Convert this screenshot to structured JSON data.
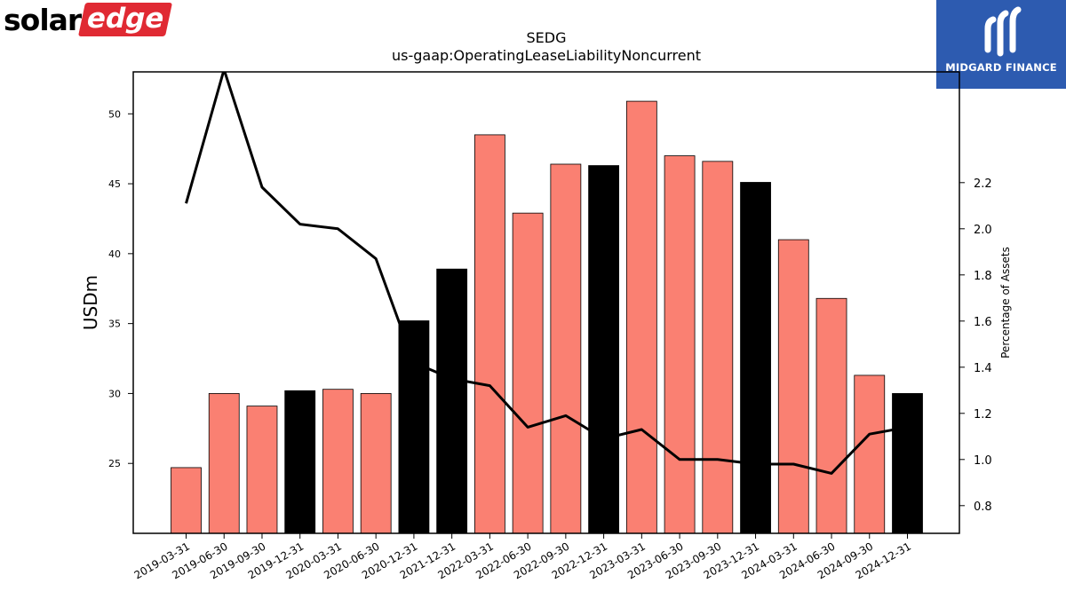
{
  "brand": {
    "logo_solar": "solar",
    "logo_edge": "edge",
    "badge_text": "MIDGARD FINANCE",
    "logo_color": "#e02a33",
    "badge_color": "#2d5bb0"
  },
  "chart_data": {
    "type": "bar",
    "title": "SEDG",
    "subtitle": "us-gaap:OperatingLeaseLiabilityNoncurrent",
    "ylabel": "USDm",
    "y2label": "Percentage of Assets",
    "ylim": [
      20,
      53
    ],
    "y2lim": [
      0.68,
      2.68
    ],
    "yticks": [
      25,
      30,
      35,
      40,
      45,
      50
    ],
    "y2ticks": [
      0.8,
      1.0,
      1.2,
      1.4,
      1.6,
      1.8,
      2.0,
      2.2
    ],
    "y2tick_labels": [
      "0.8",
      "1.0",
      "1.2",
      "1.4",
      "1.6",
      "1.8",
      "2.0",
      "2.2"
    ],
    "categories": [
      "2019-03-31",
      "2019-06-30",
      "2019-09-30",
      "2019-12-31",
      "2020-03-31",
      "2020-06-30",
      "2020-12-31",
      "2021-12-31",
      "2022-03-31",
      "2022-06-30",
      "2022-09-30",
      "2022-12-31",
      "2023-03-31",
      "2023-06-30",
      "2023-09-30",
      "2023-12-31",
      "2024-03-31",
      "2024-06-30",
      "2024-09-30",
      "2024-12-31"
    ],
    "series": [
      {
        "values": [
          24.7,
          30.0,
          29.1,
          30.2,
          30.3,
          30.0,
          35.2,
          38.9,
          48.5,
          42.9,
          46.4,
          46.3,
          50.9,
          47.0,
          46.6,
          45.1,
          41.0,
          36.8,
          31.3,
          30.0
        ],
        "colors": [
          "salmon",
          "salmon",
          "salmon",
          "black",
          "salmon",
          "salmon",
          "black",
          "black",
          "salmon",
          "salmon",
          "salmon",
          "black",
          "salmon",
          "salmon",
          "salmon",
          "black",
          "salmon",
          "salmon",
          "salmon",
          "black"
        ]
      },
      {
        "axis": "secondary",
        "values": [
          2.11,
          2.69,
          2.18,
          2.02,
          2.0,
          1.87,
          1.42,
          1.35,
          1.32,
          1.14,
          1.19,
          1.09,
          1.13,
          1.0,
          1.0,
          0.98,
          0.98,
          0.94,
          1.11,
          1.14
        ]
      }
    ],
    "colors": {
      "salmon": "#fa8072",
      "black": "#000000",
      "line": "#000000"
    },
    "grid": false,
    "legend": "none"
  }
}
